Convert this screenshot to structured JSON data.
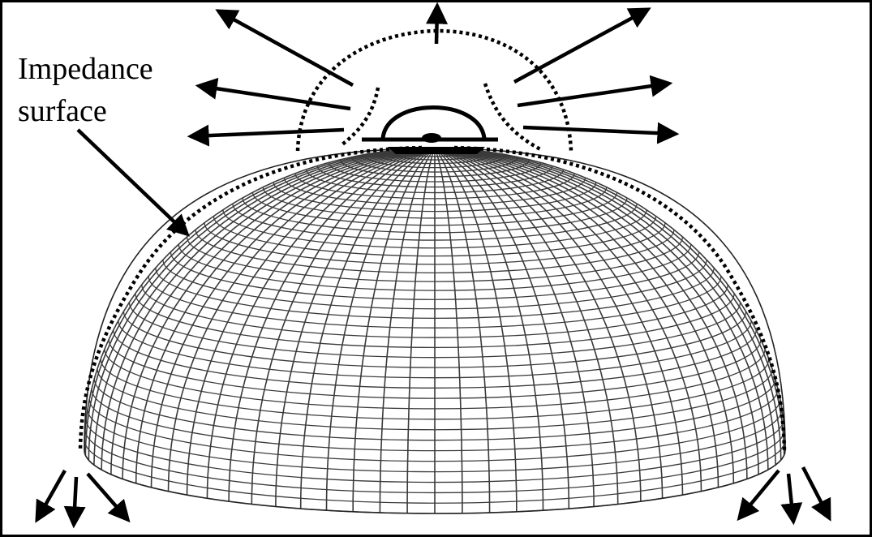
{
  "label": {
    "line1": "Impedance",
    "line2": "surface"
  },
  "colors": {
    "ink": "#000000",
    "mesh": "#3a3a3a",
    "background": "#ffffff",
    "frame": "#000000"
  },
  "elements": {
    "dome": "hemispherical-mesh",
    "antenna": "patch-antenna",
    "boundary": "dotted-impedance-boundary",
    "rays": "radiation-arrows"
  }
}
